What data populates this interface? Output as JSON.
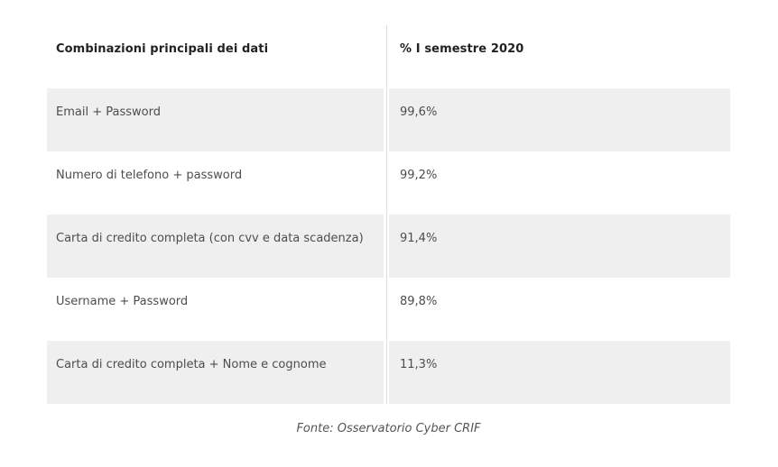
{
  "table": {
    "columns": [
      "Combinazioni principali dei dati",
      "% I semestre 2020"
    ],
    "rows": [
      {
        "label": "Email + Password",
        "value": "99,6%"
      },
      {
        "label": "Numero di telefono + password",
        "value": "99,2%"
      },
      {
        "label": "Carta di credito completa (con cvv e data scadenza)",
        "value": "91,4%"
      },
      {
        "label": "Username + Password",
        "value": "89,8%"
      },
      {
        "label": "Carta di credito completa + Nome e cognome",
        "value": "11,3%"
      }
    ]
  },
  "footer": {
    "source": "Fonte: Osservatorio Cyber CRIF"
  },
  "colors": {
    "background": "#ffffff",
    "stripe": "#efefef",
    "divider": "#dcdcdc",
    "header_text": "#222222",
    "body_text": "#4d4d4d",
    "caption_text": "#555555"
  },
  "chart_data": {
    "type": "table",
    "title": "Combinazioni principali dei dati",
    "columns": [
      "Combinazioni principali dei dati",
      "% I semestre 2020"
    ],
    "categories": [
      "Email + Password",
      "Numero di telefono + password",
      "Carta di credito completa (con cvv e data scadenza)",
      "Username + Password",
      "Carta di credito completa + Nome e cognome"
    ],
    "values": [
      99.6,
      99.2,
      91.4,
      89.8,
      11.3
    ],
    "unit": "%",
    "period": "I semestre 2020",
    "source": "Fonte: Osservatorio Cyber CRIF",
    "layout": {
      "striped_rows": true,
      "stripe_on": "odd",
      "column_divider": true
    }
  }
}
